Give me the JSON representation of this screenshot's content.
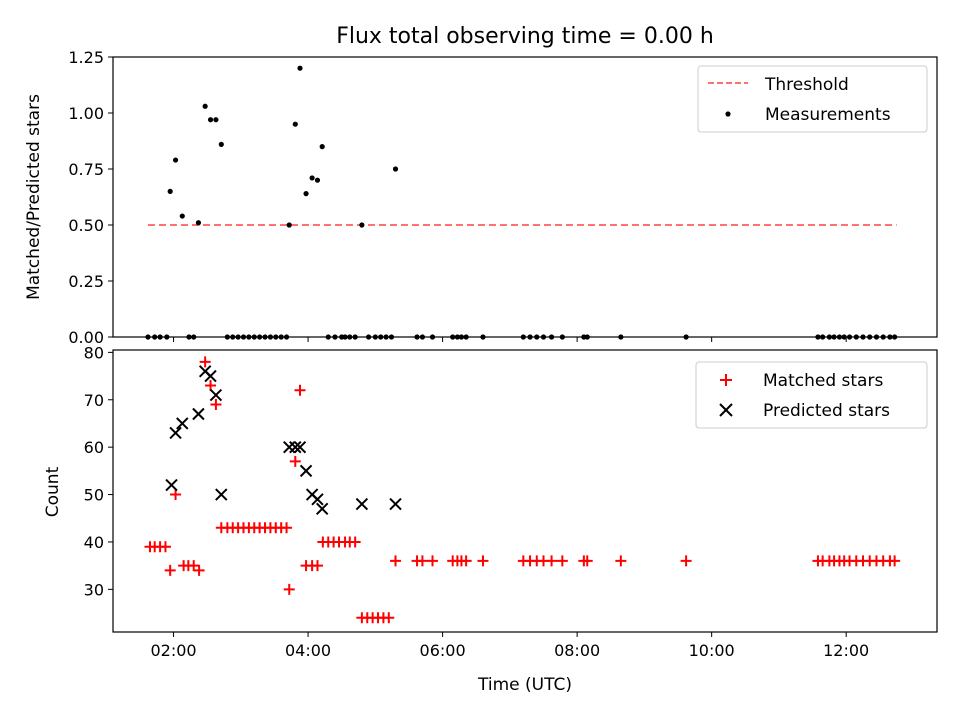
{
  "chart_data": [
    {
      "type": "scatter",
      "title": "Flux total observing time = 0.00 h",
      "xlabel": "",
      "ylabel": "Matched/Predicted stars",
      "xlim": [
        1.1,
        13.35
      ],
      "ylim": [
        0,
        1.25
      ],
      "x_tick_labels": [
        "02:00",
        "04:00",
        "06:00",
        "08:00",
        "10:00",
        "12:00"
      ],
      "x_tick_values": [
        2,
        4,
        6,
        8,
        10,
        12
      ],
      "y_tick_labels": [
        "0.00",
        "0.25",
        "0.50",
        "0.75",
        "1.00",
        "1.25"
      ],
      "y_tick_values": [
        0,
        0.25,
        0.5,
        0.75,
        1.0,
        1.25
      ],
      "legend": {
        "position": "top-right",
        "entries": [
          "Threshold",
          "Measurements"
        ]
      },
      "threshold": {
        "name": "Threshold",
        "value": 0.5,
        "x_range": [
          1.62,
          12.75
        ],
        "color": "#ff7070"
      },
      "series": [
        {
          "name": "Measurements",
          "color": "#000000",
          "marker": "dot",
          "x": [
            1.95,
            2.03,
            2.13,
            2.37,
            2.47,
            2.55,
            2.63,
            2.71,
            3.72,
            3.81,
            3.88,
            3.97,
            4.06,
            4.14,
            4.21,
            4.8,
            5.3,
            1.62,
            1.72,
            1.8,
            1.9,
            2.23,
            2.3,
            2.8,
            2.88,
            2.96,
            3.04,
            3.12,
            3.2,
            3.28,
            3.36,
            3.44,
            3.52,
            3.6,
            3.68,
            4.3,
            4.4,
            4.5,
            4.55,
            4.62,
            4.7,
            4.9,
            5.0,
            5.08,
            5.16,
            5.24,
            5.62,
            5.7,
            5.85,
            6.15,
            6.22,
            6.28,
            6.35,
            6.6,
            7.2,
            7.3,
            7.4,
            7.5,
            7.62,
            7.78,
            8.1,
            8.15,
            8.65,
            9.62,
            11.58,
            11.65,
            11.75,
            11.82,
            11.9,
            11.97,
            12.05,
            12.15,
            12.25,
            12.35,
            12.45,
            12.55,
            12.65,
            12.72
          ],
          "y": [
            0.65,
            0.79,
            0.54,
            0.51,
            1.03,
            0.97,
            0.97,
            0.86,
            0.5,
            0.95,
            1.2,
            0.64,
            0.71,
            0.7,
            0.85,
            0.5,
            0.75,
            0,
            0,
            0,
            0,
            0,
            0,
            0,
            0,
            0,
            0,
            0,
            0,
            0,
            0,
            0,
            0,
            0,
            0,
            0,
            0,
            0,
            0,
            0,
            0,
            0,
            0,
            0,
            0,
            0,
            0,
            0,
            0,
            0,
            0,
            0,
            0,
            0,
            0,
            0,
            0,
            0,
            0,
            0,
            0,
            0,
            0,
            0,
            0,
            0,
            0,
            0,
            0,
            0,
            0,
            0,
            0,
            0,
            0,
            0,
            0,
            0
          ]
        }
      ]
    },
    {
      "type": "scatter",
      "title": "",
      "xlabel": "Time (UTC)",
      "ylabel": "Count",
      "xlim": [
        1.1,
        13.35
      ],
      "ylim": [
        21,
        80.5
      ],
      "x_tick_labels": [
        "02:00",
        "04:00",
        "06:00",
        "08:00",
        "10:00",
        "12:00"
      ],
      "x_tick_values": [
        2,
        4,
        6,
        8,
        10,
        12
      ],
      "y_tick_labels": [
        "30",
        "40",
        "50",
        "60",
        "70",
        "80"
      ],
      "y_tick_values": [
        30,
        40,
        50,
        60,
        70,
        80
      ],
      "legend": {
        "position": "top-right",
        "entries": [
          "Matched stars",
          "Predicted stars"
        ]
      },
      "series": [
        {
          "name": "Matched stars",
          "color": "#ff0000",
          "marker": "plus",
          "x": [
            1.65,
            1.72,
            1.8,
            1.88,
            1.95,
            2.03,
            2.15,
            2.22,
            2.3,
            2.38,
            2.47,
            2.55,
            2.63,
            2.71,
            2.8,
            2.88,
            2.96,
            3.04,
            3.12,
            3.2,
            3.28,
            3.36,
            3.44,
            3.52,
            3.6,
            3.68,
            3.72,
            3.81,
            3.88,
            3.97,
            4.06,
            4.14,
            4.22,
            4.3,
            4.38,
            4.46,
            4.55,
            4.62,
            4.7,
            4.8,
            4.88,
            4.96,
            5.04,
            5.12,
            5.2,
            5.3,
            5.62,
            5.7,
            5.85,
            6.15,
            6.22,
            6.28,
            6.35,
            6.6,
            7.2,
            7.3,
            7.4,
            7.5,
            7.62,
            7.78,
            8.1,
            8.15,
            8.65,
            9.62,
            11.58,
            11.65,
            11.75,
            11.82,
            11.9,
            11.97,
            12.05,
            12.15,
            12.25,
            12.35,
            12.45,
            12.55,
            12.65,
            12.72
          ],
          "y": [
            39,
            39,
            39,
            39,
            34,
            50,
            35,
            35,
            35,
            34,
            78,
            73,
            69,
            43,
            43,
            43,
            43,
            43,
            43,
            43,
            43,
            43,
            43,
            43,
            43,
            43,
            30,
            57,
            72,
            35,
            35,
            35,
            40,
            40,
            40,
            40,
            40,
            40,
            40,
            24,
            24,
            24,
            24,
            24,
            24,
            36,
            36,
            36,
            36,
            36,
            36,
            36,
            36,
            36,
            36,
            36,
            36,
            36,
            36,
            36,
            36,
            36,
            36,
            36,
            36,
            36,
            36,
            36,
            36,
            36,
            36,
            36,
            36,
            36,
            36,
            36,
            36,
            36
          ]
        },
        {
          "name": "Predicted stars",
          "color": "#000000",
          "marker": "x",
          "x": [
            1.97,
            2.03,
            2.13,
            2.37,
            2.47,
            2.55,
            2.63,
            2.71,
            3.72,
            3.81,
            3.88,
            3.97,
            4.06,
            4.14,
            4.21,
            4.8,
            5.3
          ],
          "y": [
            52,
            63,
            65,
            67,
            76,
            75,
            71,
            50,
            60,
            60,
            60,
            55,
            50,
            49,
            47,
            48,
            48
          ]
        }
      ]
    }
  ]
}
